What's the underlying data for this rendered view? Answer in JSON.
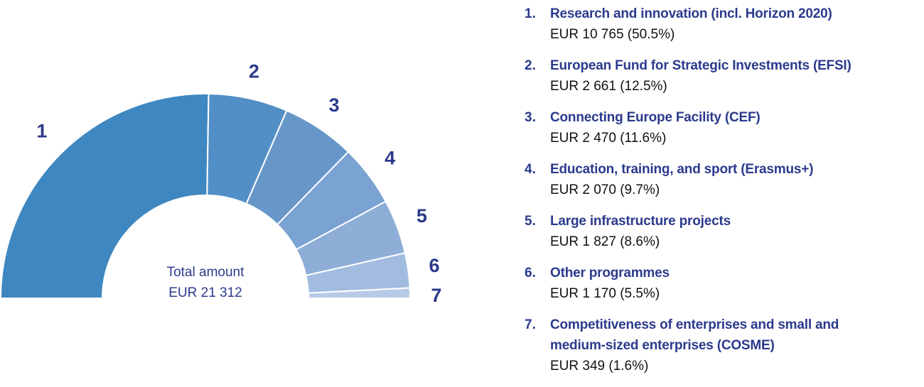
{
  "chart_data": {
    "type": "pie",
    "variant": "half-donut",
    "center_label": {
      "title": "Total amount",
      "value": "EUR 21 312"
    },
    "labels": [
      "1",
      "2",
      "3",
      "4",
      "5",
      "6",
      "7"
    ],
    "values": [
      10765,
      2661,
      2470,
      2070,
      1827,
      1170,
      349
    ],
    "percentages": [
      50.5,
      12.5,
      11.6,
      9.7,
      8.6,
      5.5,
      1.6
    ],
    "colors": [
      "#3f87c0",
      "#528fc6",
      "#6797c9",
      "#7aa2d2",
      "#8eaed8",
      "#a2bce0",
      "#b7cbe8"
    ]
  },
  "legend": [
    {
      "num": "1.",
      "title": "Research and innovation (incl. Horizon 2020)",
      "value": "EUR 10 765 (50.5%)"
    },
    {
      "num": "2.",
      "title": "European Fund for Strategic Investments (EFSI)",
      "value": "EUR 2 661 (12.5%)"
    },
    {
      "num": "3.",
      "title": "Connecting Europe Facility (CEF)",
      "value": "EUR 2 470 (11.6%)"
    },
    {
      "num": "4.",
      "title": "Education, training, and sport (Erasmus+)",
      "value": "EUR 2 070 (9.7%)"
    },
    {
      "num": "5.",
      "title": "Large infrastructure projects",
      "value": "EUR 1 827 (8.6%)"
    },
    {
      "num": "6.",
      "title": "Other programmes",
      "value": "EUR 1 170 (5.5%)"
    },
    {
      "num": "7.",
      "title": "Competitiveness of enterprises and small and medium-sized enterprises (COSME)",
      "value": "EUR 349 (1.6%)"
    }
  ]
}
